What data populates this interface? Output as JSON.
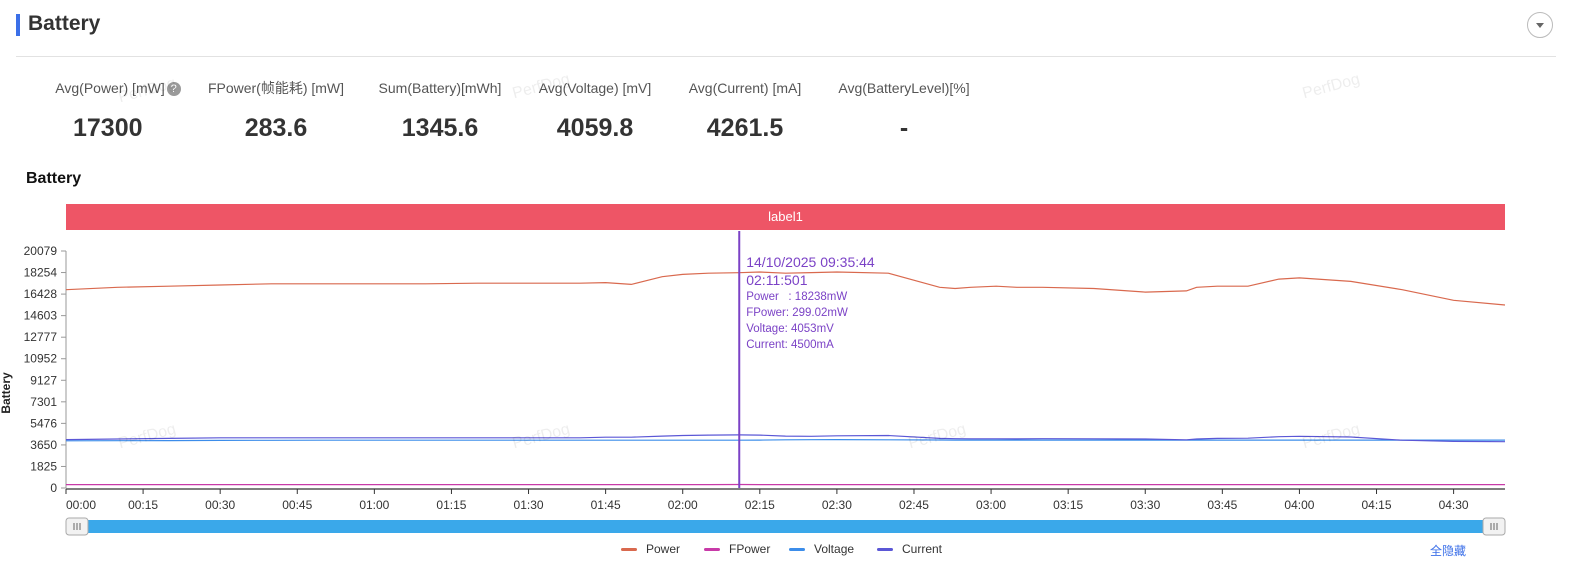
{
  "header": {
    "title": "Battery"
  },
  "metrics": [
    {
      "label": "Avg(Power) [mW]",
      "value": "17300",
      "help": "?"
    },
    {
      "label": "FPower(帧能耗) [mW]",
      "value": "283.6"
    },
    {
      "label": "Sum(Battery)[mWh]",
      "value": "1345.6"
    },
    {
      "label": "Avg(Voltage) [mV]",
      "value": "4059.8"
    },
    {
      "label": "Avg(Current) [mA]",
      "value": "4261.5"
    },
    {
      "label": "Avg(BatteryLevel)[%]",
      "value": "-"
    }
  ],
  "watermark": "PerfDog",
  "chart_data": {
    "type": "line",
    "title": "Battery",
    "ylabel": "Battery",
    "xlabel": "",
    "label_band": "label1",
    "colors": {
      "band": "#ee5566",
      "cursor": "#7b42c6",
      "slider": "#3aa8ea"
    },
    "ylim": [
      0,
      20079
    ],
    "yticks": [
      0,
      1825,
      3650,
      5476,
      7301,
      9127,
      10952,
      12777,
      14603,
      16428,
      18254,
      20079
    ],
    "xlim": [
      0,
      280
    ],
    "xticks": [
      "00:00",
      "00:15",
      "00:30",
      "00:45",
      "01:00",
      "01:15",
      "01:30",
      "01:45",
      "02:00",
      "02:15",
      "02:30",
      "02:45",
      "03:00",
      "03:15",
      "03:30",
      "03:45",
      "04:00",
      "04:15",
      "04:30"
    ],
    "x": [
      0,
      10,
      20,
      30,
      40,
      50,
      60,
      70,
      80,
      90,
      100,
      105,
      110,
      116,
      120,
      125,
      131,
      135,
      140,
      145,
      150,
      160,
      170,
      173,
      176,
      181,
      185,
      190,
      200,
      210,
      218,
      220,
      224,
      230,
      236,
      240,
      250,
      260,
      270,
      280
    ],
    "series": [
      {
        "name": "Power",
        "color": "#d9694e",
        "values": [
          16800,
          17000,
          17100,
          17200,
          17300,
          17300,
          17300,
          17300,
          17350,
          17350,
          17350,
          17400,
          17250,
          17900,
          18100,
          18200,
          18238,
          18300,
          18200,
          18250,
          18300,
          18200,
          17000,
          16900,
          17000,
          17100,
          17000,
          17000,
          16900,
          16600,
          16700,
          17000,
          17100,
          17100,
          17700,
          17800,
          17500,
          16800,
          15900,
          15500
        ]
      },
      {
        "name": "FPower",
        "color": "#c83aa8",
        "values": [
          284,
          284,
          284,
          284,
          284,
          284,
          284,
          284,
          284,
          284,
          284,
          284,
          284,
          284,
          284,
          284,
          299,
          284,
          284,
          284,
          284,
          284,
          284,
          284,
          284,
          284,
          284,
          284,
          284,
          284,
          284,
          284,
          284,
          284,
          284,
          284,
          284,
          284,
          284,
          284
        ]
      },
      {
        "name": "Voltage",
        "color": "#3c8dea",
        "values": [
          4000,
          4010,
          4020,
          4030,
          4040,
          4050,
          4050,
          4050,
          4050,
          4050,
          4050,
          4050,
          4050,
          4050,
          4050,
          4050,
          4053,
          4060,
          4080,
          4090,
          4100,
          4080,
          4070,
          4060,
          4060,
          4060,
          4060,
          4060,
          4060,
          4060,
          4060,
          4060,
          4060,
          4060,
          4060,
          4060,
          4060,
          4060,
          4060,
          4060
        ]
      },
      {
        "name": "Current",
        "color": "#5b57d6",
        "values": [
          4100,
          4150,
          4200,
          4250,
          4250,
          4250,
          4250,
          4250,
          4250,
          4250,
          4250,
          4300,
          4300,
          4400,
          4450,
          4480,
          4500,
          4480,
          4400,
          4380,
          4420,
          4450,
          4200,
          4180,
          4170,
          4170,
          4160,
          4180,
          4170,
          4150,
          4080,
          4150,
          4200,
          4220,
          4350,
          4380,
          4320,
          4050,
          3950,
          3920
        ]
      }
    ],
    "tooltip": {
      "datetime": "14/10/2025 09:35:44",
      "time": "02:11:501",
      "x": 131,
      "lines": [
        {
          "label": "Power",
          "value": "18238mW"
        },
        {
          "label": "FPower",
          "value": "299.02mW"
        },
        {
          "label": "Voltage",
          "value": "4053mV"
        },
        {
          "label": "Current",
          "value": "4500mA"
        }
      ]
    },
    "legend_position": "bottom-center"
  },
  "legend": {
    "hide_all": "全隐藏"
  }
}
